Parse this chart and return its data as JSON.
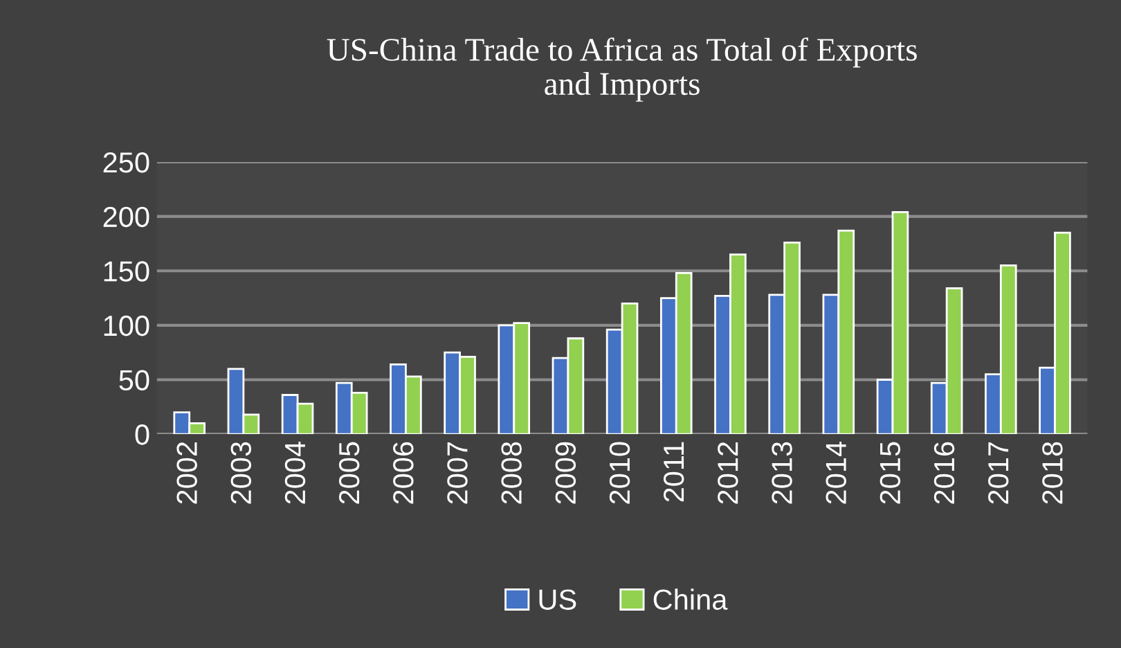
{
  "chart_data": {
    "type": "bar",
    "title": "US-China Trade to Africa as Total of Exports\nand Imports",
    "categories": [
      "2002",
      "2003",
      "2004",
      "2005",
      "2006",
      "2007",
      "2008",
      "2009",
      "2010",
      "2011",
      "2012",
      "2013",
      "2014",
      "2015",
      "2016",
      "2017",
      "2018"
    ],
    "series": [
      {
        "name": "US",
        "color": "#4472c4",
        "values": [
          20,
          60,
          36,
          47,
          64,
          75,
          100,
          70,
          96,
          125,
          127,
          128,
          128,
          50,
          47,
          55,
          61
        ]
      },
      {
        "name": "China",
        "color": "#92d050",
        "values": [
          10,
          18,
          28,
          38,
          53,
          71,
          102,
          88,
          120,
          148,
          165,
          176,
          187,
          204,
          134,
          155,
          185
        ]
      }
    ],
    "ylim": [
      0,
      250
    ],
    "yticks": [
      0,
      50,
      100,
      150,
      200,
      250
    ],
    "grid": "y",
    "legend": "bottom"
  }
}
